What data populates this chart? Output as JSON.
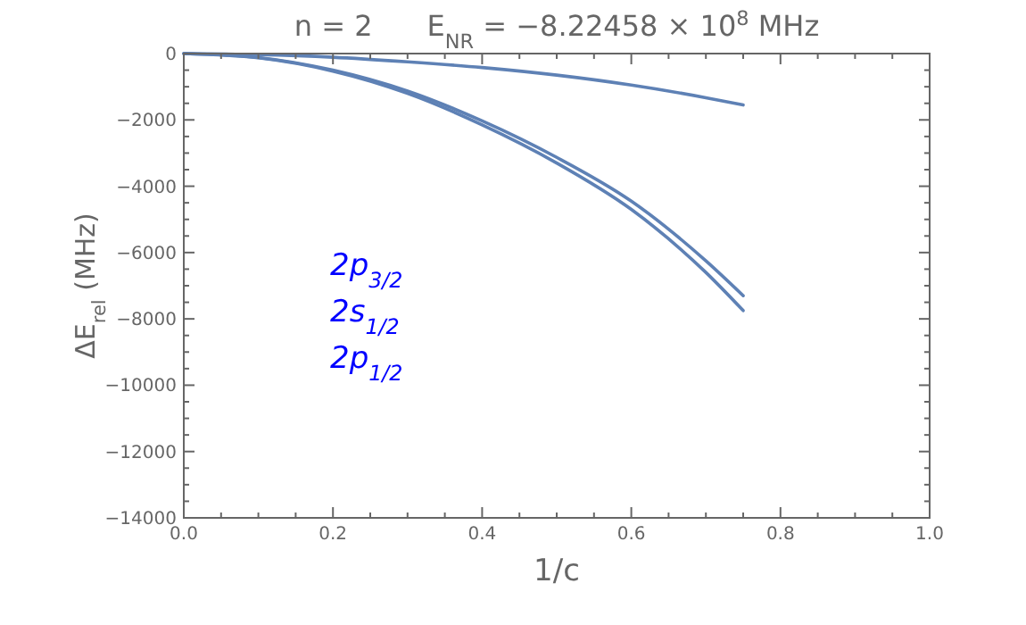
{
  "chart_data": {
    "type": "line",
    "title": "n = 2      E$_{NR}$ = −8.22458 × 10$^{8}$ MHz",
    "xlabel": "1/c",
    "ylabel": "ΔE$_{rel}$ (MHz)",
    "annotations": [
      "2p$_{3/2}$",
      "2s$_{1/2}$",
      "2p$_{1/2}$"
    ],
    "xlim": [
      0,
      1
    ],
    "ylim": [
      -14000,
      0
    ],
    "xticks": [
      {
        "value": 0,
        "label": "0.0"
      },
      {
        "value": 0.2,
        "label": "0.2"
      },
      {
        "value": 0.4,
        "label": "0.4"
      },
      {
        "value": 0.6,
        "label": "0.6"
      },
      {
        "value": 0.8,
        "label": "0.8"
      },
      {
        "value": 1,
        "label": "1.0"
      }
    ],
    "yticks": [
      0,
      {
        "value": -2000,
        "label": "−2000"
      },
      {
        "value": -4000,
        "label": "−4000"
      },
      {
        "value": -6000,
        "label": "−6000"
      },
      {
        "value": -8000,
        "label": "−8000"
      },
      {
        "value": -10000,
        "label": "−10000"
      },
      {
        "value": -12000,
        "label": "−12000"
      },
      {
        "value": -14000,
        "label": "−14000"
      }
    ],
    "grid": false,
    "marker": "none",
    "line_style": "solid",
    "x": [
      0,
      0.1,
      0.2,
      0.3,
      0.4,
      0.5,
      0.6,
      0.7,
      0.75
    ],
    "series": [
      {
        "color": "#5e81b5",
        "values": [
          0,
          -30,
          -110,
          -250,
          -420,
          -650,
          -950,
          -1330,
          -1550
        ]
      },
      {
        "color": "#5e81b5",
        "values": [
          0,
          -120,
          -500,
          -1130,
          -2030,
          -3130,
          -4450,
          -6250,
          -7300
        ]
      },
      {
        "color": "#5e81b5",
        "values": [
          0,
          -130,
          -530,
          -1200,
          -2150,
          -3300,
          -4700,
          -6600,
          -7750
        ]
      }
    ]
  }
}
